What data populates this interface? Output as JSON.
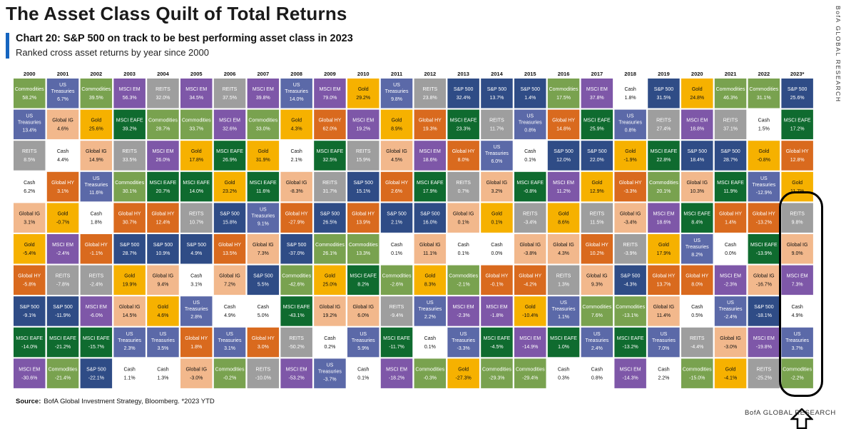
{
  "header": {
    "title": "The Asset Class Quilt of Total Returns",
    "chart_heading": "Chart 20: S&P 500 on track to be best performing asset class in 2023",
    "chart_subtitle": "Ranked cross asset returns by year since 2000"
  },
  "side_label": "BofA GLOBAL RESEARCH",
  "footer": {
    "source_label": "Source:",
    "source_text": "BofA Global Investment Strategy, Bloomberg. *2023 YTD",
    "brand": "BofA GLOBAL RESEARCH"
  },
  "colors": {
    "Commodities": "#79a24f",
    "US Treasuries": "#5b69a8",
    "Global IG": "#f2b88c",
    "Cash": "#ffffff",
    "Global HY": "#d96a1e",
    "Gold": "#f6b100",
    "S&P 500": "#2f4c86",
    "MSCI EM": "#7e57a8",
    "MSCI EAFE": "#0f6b2f",
    "REITS": "#9e9e9e"
  },
  "chart_data": {
    "type": "table",
    "years": [
      "2000",
      "2001",
      "2002",
      "2003",
      "2004",
      "2005",
      "2006",
      "2007",
      "2008",
      "2009",
      "2010",
      "2011",
      "2012",
      "2013",
      "2014",
      "2015",
      "2016",
      "2017",
      "2018",
      "2019",
      "2020",
      "2021",
      "2022",
      "2023*"
    ],
    "columns": [
      [
        {
          "a": "Commodities",
          "v": "58.2%"
        },
        {
          "a": "US Treasuries",
          "v": "13.4%"
        },
        {
          "a": "REITS",
          "v": "8.5%"
        },
        {
          "a": "Cash",
          "v": "6.2%"
        },
        {
          "a": "Global IG",
          "v": "3.1%"
        },
        {
          "a": "Gold",
          "v": "-5.4%"
        },
        {
          "a": "Global HY",
          "v": "-5.8%"
        },
        {
          "a": "S&P 500",
          "v": "-9.1%"
        },
        {
          "a": "MSCI EAFE",
          "v": "-14.0%"
        },
        {
          "a": "MSCI EM",
          "v": "-30.6%"
        }
      ],
      [
        {
          "a": "US Treasuries",
          "v": "6.7%"
        },
        {
          "a": "Global IG",
          "v": "4.6%"
        },
        {
          "a": "Cash",
          "v": "4.4%"
        },
        {
          "a": "Global HY",
          "v": "3.1%"
        },
        {
          "a": "Gold",
          "v": "-0.7%"
        },
        {
          "a": "MSCI EM",
          "v": "-2.4%"
        },
        {
          "a": "REITS",
          "v": "-7.8%"
        },
        {
          "a": "S&P 500",
          "v": "-11.9%"
        },
        {
          "a": "MSCI EAFE",
          "v": "-21.2%"
        },
        {
          "a": "Commodities",
          "v": "-21.4%"
        }
      ],
      [
        {
          "a": "Commodities",
          "v": "39.5%"
        },
        {
          "a": "Gold",
          "v": "25.6%"
        },
        {
          "a": "Global IG",
          "v": "14.9%"
        },
        {
          "a": "US Treasuries",
          "v": "11.6%"
        },
        {
          "a": "Cash",
          "v": "1.8%"
        },
        {
          "a": "Global HY",
          "v": "-1.1%"
        },
        {
          "a": "REITS",
          "v": "-2.4%"
        },
        {
          "a": "MSCI EM",
          "v": "-6.0%"
        },
        {
          "a": "MSCI EAFE",
          "v": "-15.7%"
        },
        {
          "a": "S&P 500",
          "v": "-22.1%"
        }
      ],
      [
        {
          "a": "MSCI EM",
          "v": "56.3%"
        },
        {
          "a": "MSCI EAFE",
          "v": "39.2%"
        },
        {
          "a": "REITS",
          "v": "33.5%"
        },
        {
          "a": "Commodities",
          "v": "30.1%"
        },
        {
          "a": "Global HY",
          "v": "30.7%"
        },
        {
          "a": "S&P 500",
          "v": "28.7%"
        },
        {
          "a": "Gold",
          "v": "19.9%"
        },
        {
          "a": "Global IG",
          "v": "14.5%"
        },
        {
          "a": "US Treasuries",
          "v": "2.3%"
        },
        {
          "a": "Cash",
          "v": "1.1%"
        }
      ],
      [
        {
          "a": "REITS",
          "v": "32.0%"
        },
        {
          "a": "Commodities",
          "v": "28.7%"
        },
        {
          "a": "MSCI EM",
          "v": "26.0%"
        },
        {
          "a": "MSCI EAFE",
          "v": "20.7%"
        },
        {
          "a": "Global HY",
          "v": "12.4%"
        },
        {
          "a": "S&P 500",
          "v": "10.9%"
        },
        {
          "a": "Global IG",
          "v": "9.4%"
        },
        {
          "a": "Gold",
          "v": "4.6%"
        },
        {
          "a": "US Treasuries",
          "v": "3.5%"
        },
        {
          "a": "Cash",
          "v": "1.3%"
        }
      ],
      [
        {
          "a": "MSCI EM",
          "v": "34.5%"
        },
        {
          "a": "Commodities",
          "v": "33.7%"
        },
        {
          "a": "Gold",
          "v": "17.8%"
        },
        {
          "a": "MSCI EAFE",
          "v": "14.0%"
        },
        {
          "a": "REITS",
          "v": "10.7%"
        },
        {
          "a": "S&P 500",
          "v": "4.9%"
        },
        {
          "a": "Cash",
          "v": "3.1%"
        },
        {
          "a": "US Treasuries",
          "v": "2.8%"
        },
        {
          "a": "Global HY",
          "v": "1.8%"
        },
        {
          "a": "Global IG",
          "v": "-3.0%"
        }
      ],
      [
        {
          "a": "REITS",
          "v": "37.5%"
        },
        {
          "a": "MSCI EM",
          "v": "32.6%"
        },
        {
          "a": "MSCI EAFE",
          "v": "26.9%"
        },
        {
          "a": "Gold",
          "v": "23.2%"
        },
        {
          "a": "S&P 500",
          "v": "15.8%"
        },
        {
          "a": "Global HY",
          "v": "13.5%"
        },
        {
          "a": "Global IG",
          "v": "7.2%"
        },
        {
          "a": "Cash",
          "v": "4.9%"
        },
        {
          "a": "US Treasuries",
          "v": "3.1%"
        },
        {
          "a": "Commodities",
          "v": "-0.2%"
        }
      ],
      [
        {
          "a": "MSCI EM",
          "v": "39.8%"
        },
        {
          "a": "Commodities",
          "v": "33.0%"
        },
        {
          "a": "Gold",
          "v": "31.9%"
        },
        {
          "a": "MSCI EAFE",
          "v": "11.6%"
        },
        {
          "a": "US Treasuries",
          "v": "9.1%"
        },
        {
          "a": "Global IG",
          "v": "7.3%"
        },
        {
          "a": "S&P 500",
          "v": "5.5%"
        },
        {
          "a": "Cash",
          "v": "5.0%"
        },
        {
          "a": "Global HY",
          "v": "3.0%"
        },
        {
          "a": "REITS",
          "v": "-10.0%"
        }
      ],
      [
        {
          "a": "US Treasuries",
          "v": "14.0%"
        },
        {
          "a": "Gold",
          "v": "4.3%"
        },
        {
          "a": "Cash",
          "v": "2.1%"
        },
        {
          "a": "Global IG",
          "v": "-8.3%"
        },
        {
          "a": "Global HY",
          "v": "-27.9%"
        },
        {
          "a": "S&P 500",
          "v": "-37.0%"
        },
        {
          "a": "Commodities",
          "v": "-42.6%"
        },
        {
          "a": "MSCI EAFE",
          "v": "-43.1%"
        },
        {
          "a": "REITS",
          "v": "-50.2%"
        },
        {
          "a": "MSCI EM",
          "v": "-53.2%"
        }
      ],
      [
        {
          "a": "MSCI EM",
          "v": "79.0%"
        },
        {
          "a": "Global HY",
          "v": "62.0%"
        },
        {
          "a": "MSCI EAFE",
          "v": "32.5%"
        },
        {
          "a": "REITS",
          "v": "31.7%"
        },
        {
          "a": "S&P 500",
          "v": "26.5%"
        },
        {
          "a": "Commodities",
          "v": "26.1%"
        },
        {
          "a": "Gold",
          "v": "25.0%"
        },
        {
          "a": "Global IG",
          "v": "19.2%"
        },
        {
          "a": "Cash",
          "v": "0.2%"
        },
        {
          "a": "US Treasuries",
          "v": "-3.7%"
        }
      ],
      [
        {
          "a": "Gold",
          "v": "29.2%"
        },
        {
          "a": "MSCI EM",
          "v": "19.2%"
        },
        {
          "a": "REITS",
          "v": "15.9%"
        },
        {
          "a": "S&P 500",
          "v": "15.1%"
        },
        {
          "a": "Global HY",
          "v": "13.9%"
        },
        {
          "a": "Commodities",
          "v": "13.3%"
        },
        {
          "a": "MSCI EAFE",
          "v": "8.2%"
        },
        {
          "a": "Global IG",
          "v": "6.0%"
        },
        {
          "a": "US Treasuries",
          "v": "5.9%"
        },
        {
          "a": "Cash",
          "v": "0.1%"
        }
      ],
      [
        {
          "a": "US Treasuries",
          "v": "9.8%"
        },
        {
          "a": "Gold",
          "v": "8.9%"
        },
        {
          "a": "Global IG",
          "v": "4.5%"
        },
        {
          "a": "Global HY",
          "v": "2.6%"
        },
        {
          "a": "S&P 500",
          "v": "2.1%"
        },
        {
          "a": "Cash",
          "v": "0.1%"
        },
        {
          "a": "Commodities",
          "v": "-2.6%"
        },
        {
          "a": "REITS",
          "v": "-9.4%"
        },
        {
          "a": "MSCI EAFE",
          "v": "-11.7%"
        },
        {
          "a": "MSCI EM",
          "v": "-18.2%"
        }
      ],
      [
        {
          "a": "REITS",
          "v": "23.8%"
        },
        {
          "a": "Global HY",
          "v": "19.3%"
        },
        {
          "a": "MSCI EM",
          "v": "18.6%"
        },
        {
          "a": "MSCI EAFE",
          "v": "17.9%"
        },
        {
          "a": "S&P 500",
          "v": "16.0%"
        },
        {
          "a": "Global IG",
          "v": "11.1%"
        },
        {
          "a": "Gold",
          "v": "8.3%"
        },
        {
          "a": "US Treasuries",
          "v": "2.2%"
        },
        {
          "a": "Cash",
          "v": "0.1%"
        },
        {
          "a": "Commodities",
          "v": "-0.3%"
        }
      ],
      [
        {
          "a": "S&P 500",
          "v": "32.4%"
        },
        {
          "a": "MSCI EAFE",
          "v": "23.3%"
        },
        {
          "a": "Global HY",
          "v": "8.0%"
        },
        {
          "a": "REITS",
          "v": "0.7%"
        },
        {
          "a": "Global IG",
          "v": "0.1%"
        },
        {
          "a": "Cash",
          "v": "0.1%"
        },
        {
          "a": "Commodities",
          "v": "-2.1%"
        },
        {
          "a": "MSCI EM",
          "v": "-2.3%"
        },
        {
          "a": "US Treasuries",
          "v": "-3.3%"
        },
        {
          "a": "Gold",
          "v": "-27.3%"
        }
      ],
      [
        {
          "a": "S&P 500",
          "v": "13.7%"
        },
        {
          "a": "REITS",
          "v": "11.7%"
        },
        {
          "a": "US Treasuries",
          "v": "6.0%"
        },
        {
          "a": "Global IG",
          "v": "3.2%"
        },
        {
          "a": "Gold",
          "v": "0.1%"
        },
        {
          "a": "Cash",
          "v": "0.0%"
        },
        {
          "a": "Global HY",
          "v": "-0.1%"
        },
        {
          "a": "MSCI EM",
          "v": "-1.8%"
        },
        {
          "a": "MSCI EAFE",
          "v": "-4.5%"
        },
        {
          "a": "Commodities",
          "v": "-29.3%"
        }
      ],
      [
        {
          "a": "S&P 500",
          "v": "1.4%"
        },
        {
          "a": "US Treasuries",
          "v": "0.8%"
        },
        {
          "a": "Cash",
          "v": "0.1%"
        },
        {
          "a": "MSCI EAFE",
          "v": "-0.8%"
        },
        {
          "a": "REITS",
          "v": "-3.4%"
        },
        {
          "a": "Global IG",
          "v": "-3.8%"
        },
        {
          "a": "Global HY",
          "v": "-4.2%"
        },
        {
          "a": "Gold",
          "v": "-10.4%"
        },
        {
          "a": "MSCI EM",
          "v": "-14.9%"
        },
        {
          "a": "Commodities",
          "v": "-29.4%"
        }
      ],
      [
        {
          "a": "Commodities",
          "v": "17.5%"
        },
        {
          "a": "Global HY",
          "v": "14.8%"
        },
        {
          "a": "S&P 500",
          "v": "12.0%"
        },
        {
          "a": "MSCI EM",
          "v": "11.2%"
        },
        {
          "a": "Gold",
          "v": "8.6%"
        },
        {
          "a": "Global IG",
          "v": "4.3%"
        },
        {
          "a": "REITS",
          "v": "1.3%"
        },
        {
          "a": "US Treasuries",
          "v": "1.1%"
        },
        {
          "a": "MSCI EAFE",
          "v": "1.0%"
        },
        {
          "a": "Cash",
          "v": "0.3%"
        }
      ],
      [
        {
          "a": "MSCI EM",
          "v": "37.8%"
        },
        {
          "a": "MSCI EAFE",
          "v": "25.9%"
        },
        {
          "a": "S&P 500",
          "v": "22.0%"
        },
        {
          "a": "Gold",
          "v": "12.9%"
        },
        {
          "a": "REITS",
          "v": "11.5%"
        },
        {
          "a": "Global HY",
          "v": "10.2%"
        },
        {
          "a": "Global IG",
          "v": "9.3%"
        },
        {
          "a": "Commodities",
          "v": "7.6%"
        },
        {
          "a": "US Treasuries",
          "v": "2.4%"
        },
        {
          "a": "Cash",
          "v": "0.8%"
        }
      ],
      [
        {
          "a": "Cash",
          "v": "1.8%"
        },
        {
          "a": "US Treasuries",
          "v": "0.8%"
        },
        {
          "a": "Gold",
          "v": "-1.9%"
        },
        {
          "a": "Global HY",
          "v": "-3.3%"
        },
        {
          "a": "Global IG",
          "v": "-3.4%"
        },
        {
          "a": "REITS",
          "v": "-3.9%"
        },
        {
          "a": "S&P 500",
          "v": "-4.3%"
        },
        {
          "a": "Commodities",
          "v": "-13.1%"
        },
        {
          "a": "MSCI EAFE",
          "v": "-13.2%"
        },
        {
          "a": "MSCI EM",
          "v": "-14.3%"
        }
      ],
      [
        {
          "a": "S&P 500",
          "v": "31.5%"
        },
        {
          "a": "REITS",
          "v": "27.4%"
        },
        {
          "a": "MSCI EAFE",
          "v": "22.8%"
        },
        {
          "a": "Commodities",
          "v": "20.1%"
        },
        {
          "a": "MSCI EM",
          "v": "18.6%"
        },
        {
          "a": "Gold",
          "v": "17.9%"
        },
        {
          "a": "Global HY",
          "v": "13.7%"
        },
        {
          "a": "Global IG",
          "v": "11.4%"
        },
        {
          "a": "US Treasuries",
          "v": "7.0%"
        },
        {
          "a": "Cash",
          "v": "2.2%"
        }
      ],
      [
        {
          "a": "Gold",
          "v": "24.8%"
        },
        {
          "a": "MSCI EM",
          "v": "18.8%"
        },
        {
          "a": "S&P 500",
          "v": "18.4%"
        },
        {
          "a": "Global IG",
          "v": "10.3%"
        },
        {
          "a": "MSCI EAFE",
          "v": "8.4%"
        },
        {
          "a": "US Treasuries",
          "v": "8.2%"
        },
        {
          "a": "Global HY",
          "v": "8.0%"
        },
        {
          "a": "Cash",
          "v": "0.5%"
        },
        {
          "a": "REITS",
          "v": "-4.4%"
        },
        {
          "a": "Commodities",
          "v": "-15.0%"
        }
      ],
      [
        {
          "a": "Commodities",
          "v": "46.3%"
        },
        {
          "a": "REITS",
          "v": "37.1%"
        },
        {
          "a": "S&P 500",
          "v": "28.7%"
        },
        {
          "a": "MSCI EAFE",
          "v": "11.9%"
        },
        {
          "a": "Global HY",
          "v": "1.4%"
        },
        {
          "a": "Cash",
          "v": "0.0%"
        },
        {
          "a": "MSCI EM",
          "v": "-2.3%"
        },
        {
          "a": "US Treasuries",
          "v": "-2.4%"
        },
        {
          "a": "Global IG",
          "v": "-3.0%"
        },
        {
          "a": "Gold",
          "v": "-4.1%"
        }
      ],
      [
        {
          "a": "Commodities",
          "v": "31.1%"
        },
        {
          "a": "Cash",
          "v": "1.5%"
        },
        {
          "a": "Gold",
          "v": "-0.8%"
        },
        {
          "a": "US Treasuries",
          "v": "-12.9%"
        },
        {
          "a": "Global HY",
          "v": "-13.2%"
        },
        {
          "a": "MSCI EAFE",
          "v": "-13.9%"
        },
        {
          "a": "Global IG",
          "v": "-16.7%"
        },
        {
          "a": "S&P 500",
          "v": "-18.1%"
        },
        {
          "a": "MSCI EM",
          "v": "-19.8%"
        },
        {
          "a": "REITS",
          "v": "-25.2%"
        }
      ],
      [
        {
          "a": "S&P 500",
          "v": "25.6%"
        },
        {
          "a": "MSCI EAFE",
          "v": "17.2%"
        },
        {
          "a": "Global HY",
          "v": "12.8%"
        },
        {
          "a": "Gold",
          "v": "11.7%"
        },
        {
          "a": "REITS",
          "v": "9.8%"
        },
        {
          "a": "Global IG",
          "v": "9.0%"
        },
        {
          "a": "MSCI EM",
          "v": "7.3%"
        },
        {
          "a": "Cash",
          "v": "4.9%"
        },
        {
          "a": "US Treasuries",
          "v": "3.7%"
        },
        {
          "a": "Commodities",
          "v": "-2.2%"
        }
      ]
    ]
  }
}
